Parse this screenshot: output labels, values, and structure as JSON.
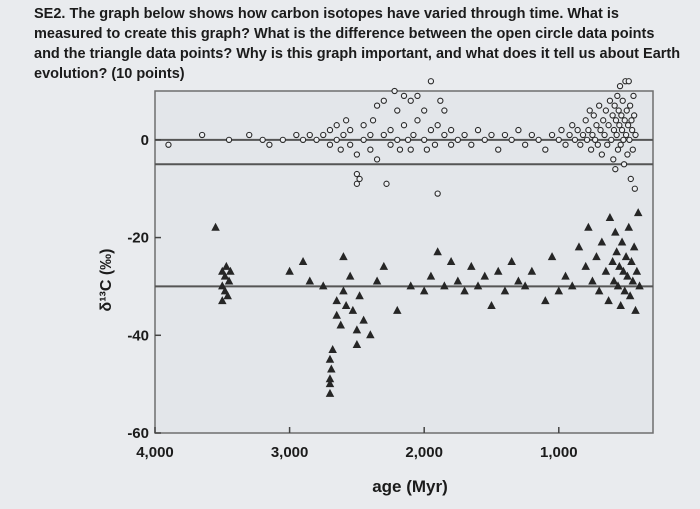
{
  "question": {
    "text": "SE2. The graph below shows how carbon isotopes have varied through time. What is measured to create this graph? What is the difference between the open circle data points and the triangle data points? Why is this graph important, and what does it tell us about Earth evolution? (10 points)"
  },
  "chart_data": {
    "type": "scatter",
    "xlabel": "age (Myr)",
    "ylabel": "δ¹³C (‰)",
    "xlim": [
      4000,
      300
    ],
    "ylim": [
      -60,
      10
    ],
    "x_ticks": [
      {
        "value": 4000,
        "label": "4,000"
      },
      {
        "value": 3000,
        "label": "3,000"
      },
      {
        "value": 2000,
        "label": "2,000"
      },
      {
        "value": 1000,
        "label": "1,000"
      }
    ],
    "y_ticks": [
      {
        "value": 0,
        "label": "0"
      },
      {
        "value": -20,
        "label": "-20"
      },
      {
        "value": -40,
        "label": "-40"
      },
      {
        "value": -60,
        "label": "-60"
      }
    ],
    "reference_lines": [
      0,
      -5,
      -30
    ],
    "series": [
      {
        "marker": "circle",
        "points": [
          [
            3900,
            -1
          ],
          [
            3650,
            1
          ],
          [
            3450,
            0
          ],
          [
            3300,
            1
          ],
          [
            3200,
            0
          ],
          [
            3150,
            -1
          ],
          [
            3050,
            0
          ],
          [
            2950,
            1
          ],
          [
            2900,
            0
          ],
          [
            2850,
            1
          ],
          [
            2800,
            0
          ],
          [
            2750,
            1
          ],
          [
            2700,
            -1
          ],
          [
            2700,
            2
          ],
          [
            2650,
            3
          ],
          [
            2650,
            0
          ],
          [
            2620,
            -2
          ],
          [
            2600,
            1
          ],
          [
            2580,
            4
          ],
          [
            2550,
            -1
          ],
          [
            2550,
            2
          ],
          [
            2500,
            -3
          ],
          [
            2500,
            -7
          ],
          [
            2500,
            -9
          ],
          [
            2480,
            -8
          ],
          [
            2450,
            3
          ],
          [
            2450,
            0
          ],
          [
            2400,
            -2
          ],
          [
            2400,
            1
          ],
          [
            2380,
            4
          ],
          [
            2350,
            7
          ],
          [
            2350,
            -4
          ],
          [
            2300,
            1
          ],
          [
            2300,
            8
          ],
          [
            2280,
            -9
          ],
          [
            2250,
            2
          ],
          [
            2250,
            -1
          ],
          [
            2220,
            10
          ],
          [
            2200,
            0
          ],
          [
            2200,
            6
          ],
          [
            2180,
            -2
          ],
          [
            2150,
            3
          ],
          [
            2150,
            9
          ],
          [
            2120,
            0
          ],
          [
            2100,
            -2
          ],
          [
            2100,
            8
          ],
          [
            2080,
            1
          ],
          [
            2050,
            4
          ],
          [
            2050,
            9
          ],
          [
            2000,
            0
          ],
          [
            2000,
            6
          ],
          [
            1980,
            -2
          ],
          [
            1950,
            2
          ],
          [
            1950,
            13
          ],
          [
            1920,
            -1
          ],
          [
            1900,
            3
          ],
          [
            1900,
            -11
          ],
          [
            1880,
            8
          ],
          [
            1850,
            1
          ],
          [
            1850,
            6
          ],
          [
            1800,
            -1
          ],
          [
            1800,
            2
          ],
          [
            1750,
            0
          ],
          [
            1700,
            1
          ],
          [
            1650,
            -1
          ],
          [
            1600,
            2
          ],
          [
            1550,
            0
          ],
          [
            1500,
            1
          ],
          [
            1450,
            -2
          ],
          [
            1400,
            1
          ],
          [
            1350,
            0
          ],
          [
            1300,
            2
          ],
          [
            1250,
            -1
          ],
          [
            1200,
            1
          ],
          [
            1150,
            0
          ],
          [
            1100,
            -2
          ],
          [
            1050,
            1
          ],
          [
            1000,
            0
          ],
          [
            980,
            2
          ],
          [
            950,
            -1
          ],
          [
            920,
            1
          ],
          [
            900,
            3
          ],
          [
            880,
            0
          ],
          [
            860,
            2
          ],
          [
            840,
            -1
          ],
          [
            820,
            1
          ],
          [
            800,
            4
          ],
          [
            790,
            0
          ],
          [
            780,
            2
          ],
          [
            770,
            6
          ],
          [
            760,
            -2
          ],
          [
            750,
            1
          ],
          [
            740,
            5
          ],
          [
            730,
            0
          ],
          [
            720,
            3
          ],
          [
            710,
            -1
          ],
          [
            700,
            7
          ],
          [
            690,
            2
          ],
          [
            680,
            -3
          ],
          [
            670,
            4
          ],
          [
            660,
            1
          ],
          [
            650,
            6
          ],
          [
            640,
            -1
          ],
          [
            630,
            3
          ],
          [
            620,
            8
          ],
          [
            610,
            0
          ],
          [
            600,
            5
          ],
          [
            595,
            -4
          ],
          [
            590,
            2
          ],
          [
            585,
            7
          ],
          [
            580,
            -6
          ],
          [
            575,
            4
          ],
          [
            570,
            1
          ],
          [
            565,
            9
          ],
          [
            560,
            -2
          ],
          [
            555,
            6
          ],
          [
            550,
            3
          ],
          [
            545,
            11
          ],
          [
            540,
            -1
          ],
          [
            535,
            5
          ],
          [
            530,
            2
          ],
          [
            525,
            8
          ],
          [
            520,
            0
          ],
          [
            515,
            -5
          ],
          [
            510,
            4
          ],
          [
            505,
            13
          ],
          [
            500,
            1
          ],
          [
            495,
            6
          ],
          [
            490,
            -3
          ],
          [
            485,
            3
          ],
          [
            480,
            15
          ],
          [
            475,
            0
          ],
          [
            470,
            7
          ],
          [
            465,
            -8
          ],
          [
            460,
            4
          ],
          [
            455,
            2
          ],
          [
            450,
            -2
          ],
          [
            445,
            9
          ],
          [
            440,
            5
          ],
          [
            435,
            -10
          ],
          [
            430,
            1
          ]
        ]
      },
      {
        "marker": "triangle",
        "points": [
          [
            3550,
            -18
          ],
          [
            3500,
            -27
          ],
          [
            3500,
            -30
          ],
          [
            3500,
            -33
          ],
          [
            3480,
            -28
          ],
          [
            3480,
            -31
          ],
          [
            3470,
            -26
          ],
          [
            3460,
            -32
          ],
          [
            3450,
            -29
          ],
          [
            3440,
            -27
          ],
          [
            3000,
            -27
          ],
          [
            2900,
            -25
          ],
          [
            2850,
            -29
          ],
          [
            2750,
            -30
          ],
          [
            2700,
            -45
          ],
          [
            2700,
            -49
          ],
          [
            2700,
            -50
          ],
          [
            2700,
            -52
          ],
          [
            2690,
            -47
          ],
          [
            2680,
            -43
          ],
          [
            2650,
            -33
          ],
          [
            2650,
            -36
          ],
          [
            2620,
            -38
          ],
          [
            2600,
            -24
          ],
          [
            2600,
            -31
          ],
          [
            2580,
            -34
          ],
          [
            2550,
            -28
          ],
          [
            2530,
            -35
          ],
          [
            2500,
            -39
          ],
          [
            2500,
            -42
          ],
          [
            2480,
            -32
          ],
          [
            2450,
            -37
          ],
          [
            2400,
            -40
          ],
          [
            2350,
            -29
          ],
          [
            2300,
            -26
          ],
          [
            2200,
            -35
          ],
          [
            2100,
            -30
          ],
          [
            2000,
            -31
          ],
          [
            1950,
            -28
          ],
          [
            1900,
            -23
          ],
          [
            1850,
            -30
          ],
          [
            1800,
            -25
          ],
          [
            1750,
            -29
          ],
          [
            1700,
            -31
          ],
          [
            1650,
            -26
          ],
          [
            1600,
            -30
          ],
          [
            1550,
            -28
          ],
          [
            1500,
            -34
          ],
          [
            1450,
            -27
          ],
          [
            1400,
            -31
          ],
          [
            1350,
            -25
          ],
          [
            1300,
            -29
          ],
          [
            1250,
            -30
          ],
          [
            1200,
            -27
          ],
          [
            1100,
            -33
          ],
          [
            1050,
            -24
          ],
          [
            1000,
            -31
          ],
          [
            950,
            -28
          ],
          [
            900,
            -30
          ],
          [
            850,
            -22
          ],
          [
            800,
            -26
          ],
          [
            780,
            -18
          ],
          [
            750,
            -29
          ],
          [
            720,
            -24
          ],
          [
            700,
            -31
          ],
          [
            680,
            -21
          ],
          [
            650,
            -27
          ],
          [
            630,
            -33
          ],
          [
            620,
            -16
          ],
          [
            600,
            -25
          ],
          [
            590,
            -29
          ],
          [
            580,
            -19
          ],
          [
            570,
            -23
          ],
          [
            560,
            -30
          ],
          [
            550,
            -26
          ],
          [
            540,
            -34
          ],
          [
            530,
            -21
          ],
          [
            520,
            -27
          ],
          [
            510,
            -31
          ],
          [
            500,
            -24
          ],
          [
            490,
            -28
          ],
          [
            480,
            -18
          ],
          [
            470,
            -32
          ],
          [
            460,
            -25
          ],
          [
            450,
            -29
          ],
          [
            440,
            -22
          ],
          [
            430,
            -35
          ],
          [
            420,
            -27
          ],
          [
            410,
            -15
          ],
          [
            400,
            -30
          ]
        ]
      }
    ]
  }
}
